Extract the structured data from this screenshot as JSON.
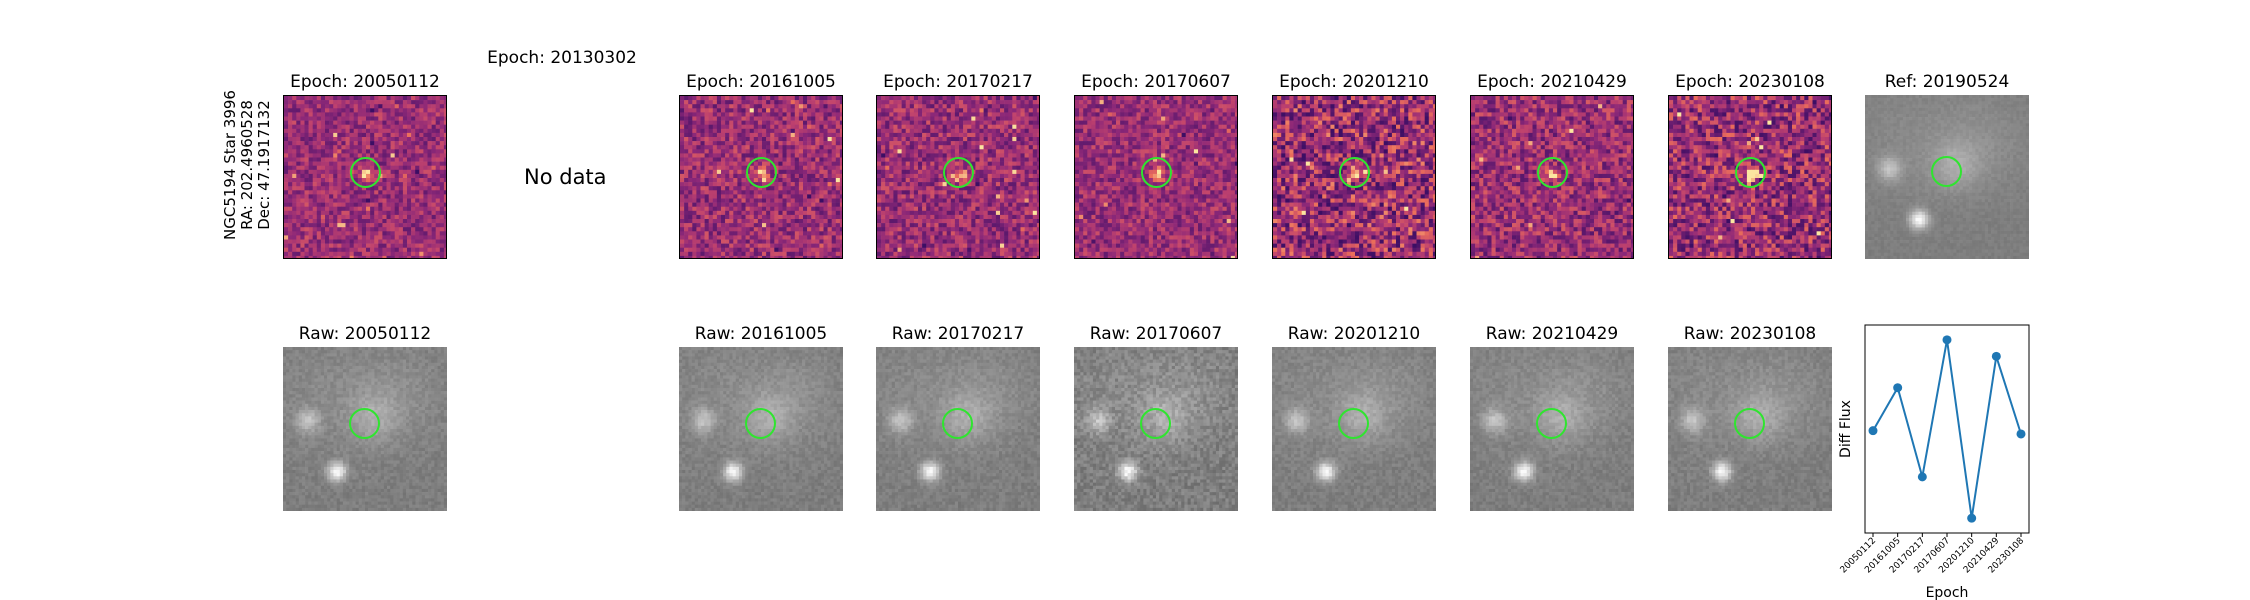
{
  "star_info": {
    "name": "NGC5194 Star 3996",
    "ra": "RA: 202.4960528",
    "dec": "Dec: 47.1917132"
  },
  "diff_panels": [
    {
      "title": "Epoch: 20050112",
      "has_data": true
    },
    {
      "title": "Epoch: 20130302",
      "has_data": false,
      "message": "No data"
    },
    {
      "title": "Epoch: 20161005",
      "has_data": true
    },
    {
      "title": "Epoch: 20170217",
      "has_data": true
    },
    {
      "title": "Epoch: 20170607",
      "has_data": true
    },
    {
      "title": "Epoch: 20201210",
      "has_data": true
    },
    {
      "title": "Epoch: 20210429",
      "has_data": true
    },
    {
      "title": "Epoch: 20230108",
      "has_data": true
    }
  ],
  "ref_panel": {
    "title": "Ref: 20190524"
  },
  "raw_panels": [
    {
      "title": "Raw: 20050112"
    },
    {
      "title": "Raw: 20161005"
    },
    {
      "title": "Raw: 20170217"
    },
    {
      "title": "Raw: 20170607"
    },
    {
      "title": "Raw: 20201210"
    },
    {
      "title": "Raw: 20210429"
    },
    {
      "title": "Raw: 20230108"
    }
  ],
  "colors": {
    "series": "#1f77b4",
    "circle": "#2fe52f"
  },
  "chart_data": {
    "type": "line",
    "x": [
      "20050112",
      "20161005",
      "20170217",
      "20170607",
      "20201210",
      "20210429",
      "20230108"
    ],
    "values": [
      0.02,
      0.28,
      -0.26,
      0.57,
      -0.51,
      0.47,
      0.0
    ],
    "xlabel": "Epoch",
    "ylabel": "Diff Flux",
    "ylim": [
      -0.6,
      0.66
    ],
    "grid": false
  }
}
